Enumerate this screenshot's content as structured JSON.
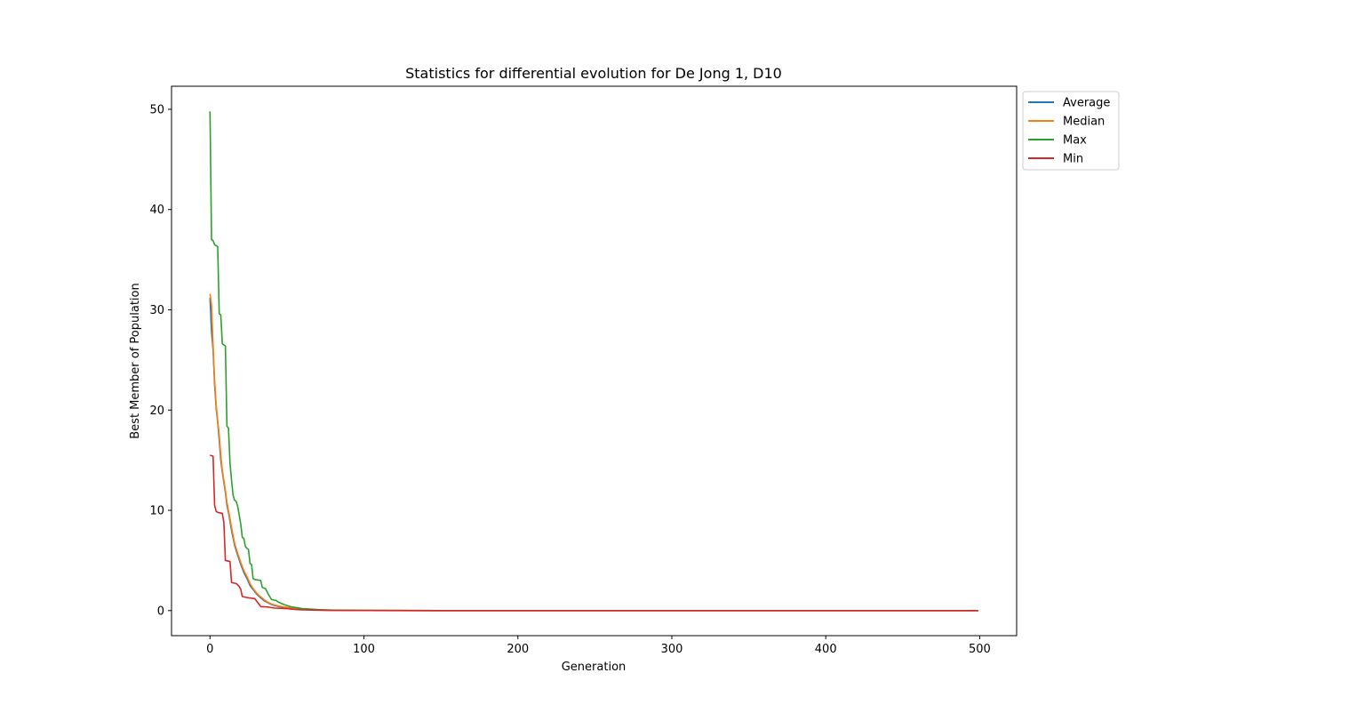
{
  "chart_data": {
    "type": "line",
    "title": "Statistics for differential evolution for De Jong 1, D10",
    "xlabel": "Generation",
    "ylabel": "Best Member of Population",
    "xlim": [
      -25,
      524
    ],
    "ylim": [
      -2.5,
      52.3
    ],
    "xticks": [
      0,
      100,
      200,
      300,
      400,
      500
    ],
    "yticks": [
      0,
      10,
      20,
      30,
      40,
      50
    ],
    "grid": false,
    "legend": "outside-top-right",
    "series": [
      {
        "name": "Average",
        "color": "#1f77b4",
        "points": [
          [
            0,
            31.2
          ],
          [
            1,
            27.8
          ],
          [
            2,
            26.0
          ],
          [
            3,
            22.5
          ],
          [
            4,
            20.2
          ],
          [
            5,
            18.8
          ],
          [
            6,
            17.0
          ],
          [
            7,
            15.0
          ],
          [
            8,
            13.8
          ],
          [
            9,
            12.8
          ],
          [
            10,
            11.8
          ],
          [
            11,
            10.5
          ],
          [
            12,
            9.8
          ],
          [
            14,
            8.0
          ],
          [
            16,
            6.5
          ],
          [
            18,
            5.5
          ],
          [
            20,
            4.6
          ],
          [
            22,
            3.8
          ],
          [
            24,
            3.2
          ],
          [
            26,
            2.5
          ],
          [
            28,
            2.1
          ],
          [
            30,
            1.7
          ],
          [
            32,
            1.4
          ],
          [
            35,
            1.0
          ],
          [
            38,
            0.75
          ],
          [
            40,
            0.6
          ],
          [
            45,
            0.4
          ],
          [
            50,
            0.3
          ],
          [
            55,
            0.2
          ],
          [
            60,
            0.12
          ],
          [
            70,
            0.05
          ],
          [
            80,
            0.02
          ],
          [
            100,
            0.01
          ],
          [
            150,
            0.0
          ],
          [
            499,
            0.0
          ]
        ]
      },
      {
        "name": "Median",
        "color": "#ff7f0e",
        "points": [
          [
            0,
            31.6
          ],
          [
            1,
            30.5
          ],
          [
            2,
            26.5
          ],
          [
            3,
            23.0
          ],
          [
            4,
            20.5
          ],
          [
            5,
            19.0
          ],
          [
            6,
            17.5
          ],
          [
            7,
            15.5
          ],
          [
            8,
            14.0
          ],
          [
            9,
            13.0
          ],
          [
            10,
            12.0
          ],
          [
            11,
            10.8
          ],
          [
            12,
            10.0
          ],
          [
            14,
            8.3
          ],
          [
            16,
            6.7
          ],
          [
            18,
            5.7
          ],
          [
            20,
            4.8
          ],
          [
            22,
            4.0
          ],
          [
            24,
            3.4
          ],
          [
            26,
            2.7
          ],
          [
            28,
            2.2
          ],
          [
            30,
            1.8
          ],
          [
            32,
            1.5
          ],
          [
            35,
            1.1
          ],
          [
            38,
            0.8
          ],
          [
            40,
            0.65
          ],
          [
            45,
            0.45
          ],
          [
            50,
            0.32
          ],
          [
            55,
            0.22
          ],
          [
            60,
            0.14
          ],
          [
            70,
            0.06
          ],
          [
            80,
            0.02
          ],
          [
            100,
            0.01
          ],
          [
            150,
            0.0
          ],
          [
            499,
            0.0
          ]
        ]
      },
      {
        "name": "Max",
        "color": "#2ca02c",
        "points": [
          [
            0,
            49.8
          ],
          [
            1,
            37.0
          ],
          [
            2,
            36.9
          ],
          [
            3,
            36.5
          ],
          [
            4,
            36.4
          ],
          [
            5,
            36.3
          ],
          [
            6,
            29.6
          ],
          [
            7,
            29.5
          ],
          [
            8,
            26.6
          ],
          [
            9,
            26.5
          ],
          [
            10,
            26.4
          ],
          [
            11,
            18.4
          ],
          [
            12,
            18.2
          ],
          [
            13,
            14.7
          ],
          [
            14,
            13.0
          ],
          [
            15,
            11.5
          ],
          [
            16,
            11.0
          ],
          [
            17,
            10.9
          ],
          [
            18,
            10.4
          ],
          [
            19,
            9.5
          ],
          [
            20,
            8.6
          ],
          [
            21,
            7.3
          ],
          [
            22,
            7.2
          ],
          [
            23,
            6.4
          ],
          [
            24,
            6.2
          ],
          [
            25,
            6.1
          ],
          [
            26,
            4.7
          ],
          [
            27,
            4.6
          ],
          [
            28,
            3.2
          ],
          [
            29,
            3.1
          ],
          [
            33,
            3.0
          ],
          [
            34,
            2.3
          ],
          [
            36,
            2.2
          ],
          [
            38,
            1.6
          ],
          [
            40,
            1.1
          ],
          [
            43,
            1.0
          ],
          [
            45,
            0.8
          ],
          [
            48,
            0.6
          ],
          [
            52,
            0.4
          ],
          [
            56,
            0.3
          ],
          [
            60,
            0.2
          ],
          [
            65,
            0.15
          ],
          [
            70,
            0.1
          ],
          [
            80,
            0.05
          ],
          [
            100,
            0.02
          ],
          [
            150,
            0.0
          ],
          [
            499,
            0.0
          ]
        ]
      },
      {
        "name": "Min",
        "color": "#d62728",
        "points": [
          [
            0,
            15.5
          ],
          [
            2,
            15.4
          ],
          [
            3,
            10.5
          ],
          [
            4,
            9.9
          ],
          [
            5,
            9.8
          ],
          [
            8,
            9.7
          ],
          [
            9,
            8.8
          ],
          [
            10,
            5.0
          ],
          [
            13,
            4.9
          ],
          [
            14,
            2.8
          ],
          [
            17,
            2.7
          ],
          [
            19,
            2.4
          ],
          [
            20,
            2.1
          ],
          [
            21,
            1.4
          ],
          [
            24,
            1.3
          ],
          [
            29,
            1.2
          ],
          [
            31,
            0.8
          ],
          [
            33,
            0.4
          ],
          [
            38,
            0.35
          ],
          [
            42,
            0.25
          ],
          [
            50,
            0.2
          ],
          [
            55,
            0.12
          ],
          [
            60,
            0.08
          ],
          [
            70,
            0.04
          ],
          [
            80,
            0.02
          ],
          [
            100,
            0.01
          ],
          [
            150,
            0.0
          ],
          [
            499,
            0.0
          ]
        ]
      }
    ]
  }
}
